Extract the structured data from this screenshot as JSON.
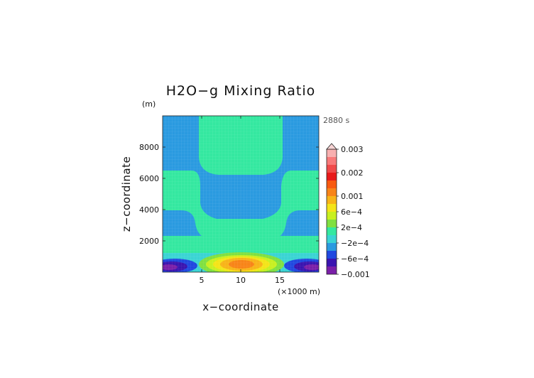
{
  "chart_data": {
    "type": "heatmap",
    "title": "H2O−g Mixing Ratio",
    "time_label": "2880 s",
    "xlabel": "x−coordinate",
    "x_unit": "(×1000 m)",
    "ylabel": "z−coordinate",
    "y_unit": "(m)",
    "x_ticks": [
      "5",
      "10",
      "15"
    ],
    "x_tick_values": [
      5,
      10,
      15
    ],
    "y_ticks": [
      "2000",
      "4000",
      "6000",
      "8000"
    ],
    "y_tick_values": [
      2000,
      4000,
      6000,
      8000
    ],
    "xlim": [
      0,
      20
    ],
    "ylim": [
      0,
      10000
    ],
    "colorbar": {
      "labels": [
        "0.003",
        "0.002",
        "0.001",
        "6e−4",
        "2e−4",
        "−2e−4",
        "−6e−4",
        "−0.001"
      ],
      "label_levels": [
        15,
        12,
        9,
        7,
        5,
        3,
        1,
        -1
      ],
      "colors": [
        "#7a1fa8",
        "#3a14b0",
        "#2048e0",
        "#2a9ae0",
        "#3ad4d4",
        "#34e8a0",
        "#80e040",
        "#c8f020",
        "#f4e418",
        "#f8b418",
        "#f88418",
        "#f85a10",
        "#e81a1a",
        "#f04a4a",
        "#f87a7a",
        "#f8b0b0"
      ],
      "triangle_color": "#f8d4d4"
    },
    "regions": {
      "background": "#2a9ae0",
      "band": "#34e8a0",
      "surface_moist": "#3ad4d4",
      "core_levels": [
        "#80e040",
        "#c8f020",
        "#f4e418",
        "#f8b418",
        "#f88418"
      ],
      "dry_levels": [
        "#2048e0",
        "#3a14b0",
        "#7a1fa8"
      ]
    }
  }
}
